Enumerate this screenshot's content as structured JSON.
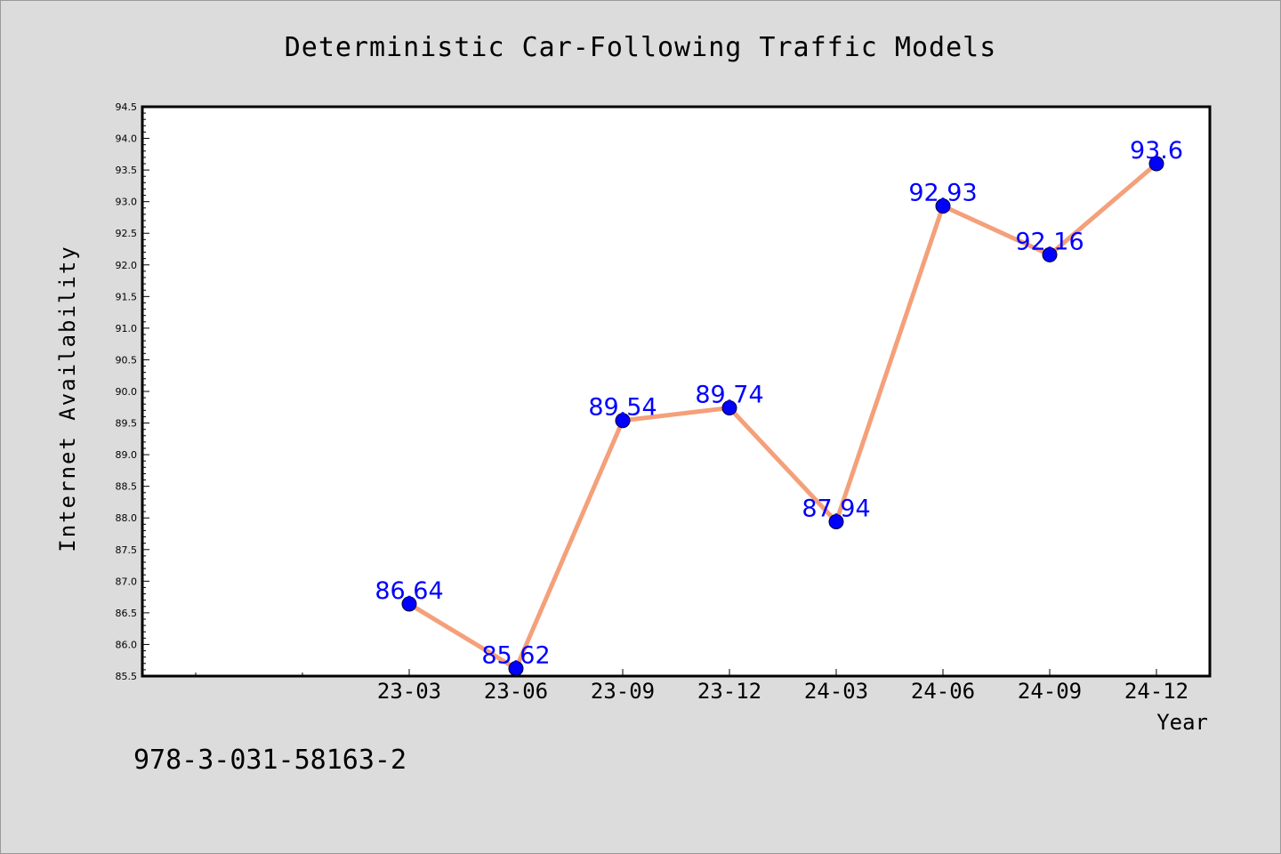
{
  "chart_data": {
    "type": "line",
    "title": "Deterministic Car-Following Traffic Models",
    "xlabel": "Year",
    "ylabel": "Internet Availability",
    "categories": [
      "23-03",
      "23-06",
      "23-09",
      "23-12",
      "24-03",
      "24-06",
      "24-09",
      "24-12"
    ],
    "values": [
      86.64,
      85.62,
      89.54,
      89.74,
      87.94,
      92.93,
      92.16,
      93.6
    ],
    "data_labels": [
      "86.64",
      "85.62",
      "89.54",
      "89.74",
      "87.94",
      "92.93",
      "92.16",
      "93.6"
    ],
    "ylim": [
      85.5,
      94.5
    ],
    "yticks": [
      "85.5",
      "86.0",
      "86.5",
      "87.0",
      "87.5",
      "88.0",
      "88.5",
      "89.0",
      "89.5",
      "90.0",
      "90.5",
      "91.0",
      "91.5",
      "92.0",
      "92.5",
      "93.0",
      "93.5",
      "94.0",
      "94.5"
    ],
    "grid": false,
    "legend": "none",
    "colors": {
      "line": "#f4a07a",
      "marker": "#0000ff",
      "data_label": "#0000ff",
      "plot_background": "#ffffff",
      "figure_background": "#dcdcdc"
    }
  },
  "footnote": "978-3-031-58163-2"
}
